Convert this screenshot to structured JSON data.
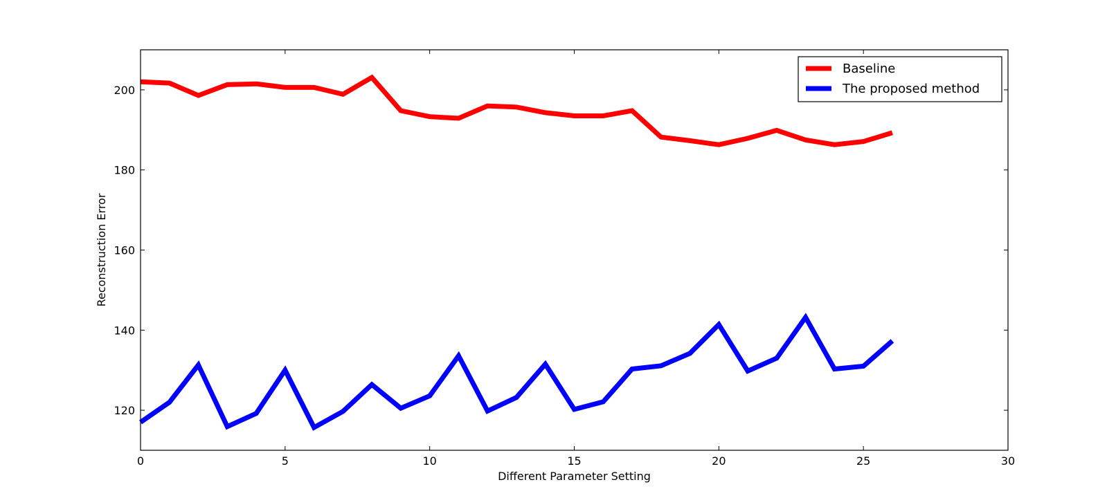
{
  "chart_data": {
    "type": "line",
    "title": "",
    "xlabel": "Different Parameter Setting",
    "ylabel": "Reconstruction Error",
    "xlim": [
      0,
      30
    ],
    "ylim": [
      110,
      210
    ],
    "xticks": [
      0,
      5,
      10,
      15,
      20,
      25,
      30
    ],
    "xtick_labels": [
      "0",
      "5",
      "10",
      "15",
      "20",
      "25",
      "30"
    ],
    "yticks": [
      120,
      140,
      160,
      180,
      200
    ],
    "ytick_labels": [
      "120",
      "140",
      "160",
      "180",
      "200"
    ],
    "grid": false,
    "legend_position": "top-right",
    "x": [
      0,
      1,
      2,
      3,
      4,
      5,
      6,
      7,
      8,
      9,
      10,
      11,
      12,
      13,
      14,
      15,
      16,
      17,
      18,
      19,
      20,
      21,
      22,
      23,
      24,
      25,
      26
    ],
    "series": [
      {
        "name": "Baseline",
        "color": "#ff0000",
        "values": [
          202.0,
          201.7,
          198.6,
          201.3,
          201.5,
          200.6,
          200.6,
          198.9,
          203.1,
          194.8,
          193.3,
          192.9,
          196.0,
          195.7,
          194.3,
          193.5,
          193.5,
          194.8,
          188.2,
          187.3,
          186.3,
          187.9,
          189.9,
          187.5,
          186.3,
          187.1,
          189.3
        ]
      },
      {
        "name": "The proposed method",
        "color": "#0000ff",
        "values": [
          117.0,
          122.0,
          131.3,
          115.9,
          119.2,
          130.0,
          115.7,
          119.7,
          126.4,
          120.5,
          123.6,
          133.6,
          119.8,
          123.2,
          131.5,
          120.2,
          122.1,
          130.3,
          131.1,
          134.2,
          141.4,
          129.8,
          133.0,
          143.2,
          130.3,
          131.0,
          137.3
        ]
      }
    ]
  }
}
